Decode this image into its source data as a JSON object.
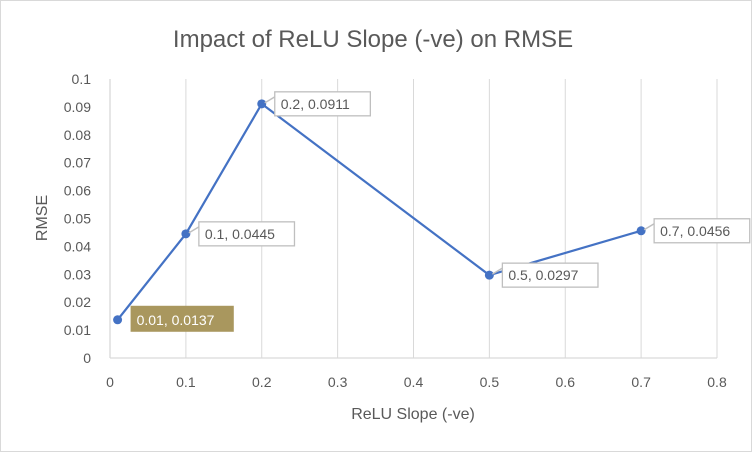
{
  "chart_data": {
    "type": "scatter",
    "title": "Impact of ReLU Slope (-ve) on RMSE",
    "xlabel": "ReLU Slope (-ve)",
    "ylabel": "RMSE",
    "xlim": [
      0,
      0.8
    ],
    "ylim": [
      0,
      0.1
    ],
    "x_ticks": [
      "0",
      "0.1",
      "0.2",
      "0.3",
      "0.4",
      "0.5",
      "0.6",
      "0.7",
      "0.8"
    ],
    "y_ticks": [
      "0",
      "0.01",
      "0.02",
      "0.03",
      "0.04",
      "0.05",
      "0.06",
      "0.07",
      "0.08",
      "0.09",
      "0.1"
    ],
    "grid": "vertical",
    "legend": "none",
    "series": [
      {
        "name": "RMSE",
        "color": "#4472c4",
        "line": "straight",
        "points": [
          {
            "x": 0.01,
            "y": 0.0137,
            "label": "0.01, 0.0137",
            "highlighted": true
          },
          {
            "x": 0.1,
            "y": 0.0445,
            "label": "0.1, 0.0445",
            "highlighted": false
          },
          {
            "x": 0.2,
            "y": 0.0911,
            "label": "0.2, 0.0911",
            "highlighted": false
          },
          {
            "x": 0.5,
            "y": 0.0297,
            "label": "0.5, 0.0297",
            "highlighted": false
          },
          {
            "x": 0.7,
            "y": 0.0456,
            "label": "0.7, 0.0456",
            "highlighted": false
          }
        ]
      }
    ],
    "colors": {
      "line": "#4472c4",
      "highlight_label_bg": "#a9975e",
      "label_border": "#bfbfbf",
      "text": "#595959",
      "grid": "#d9d9d9"
    }
  }
}
